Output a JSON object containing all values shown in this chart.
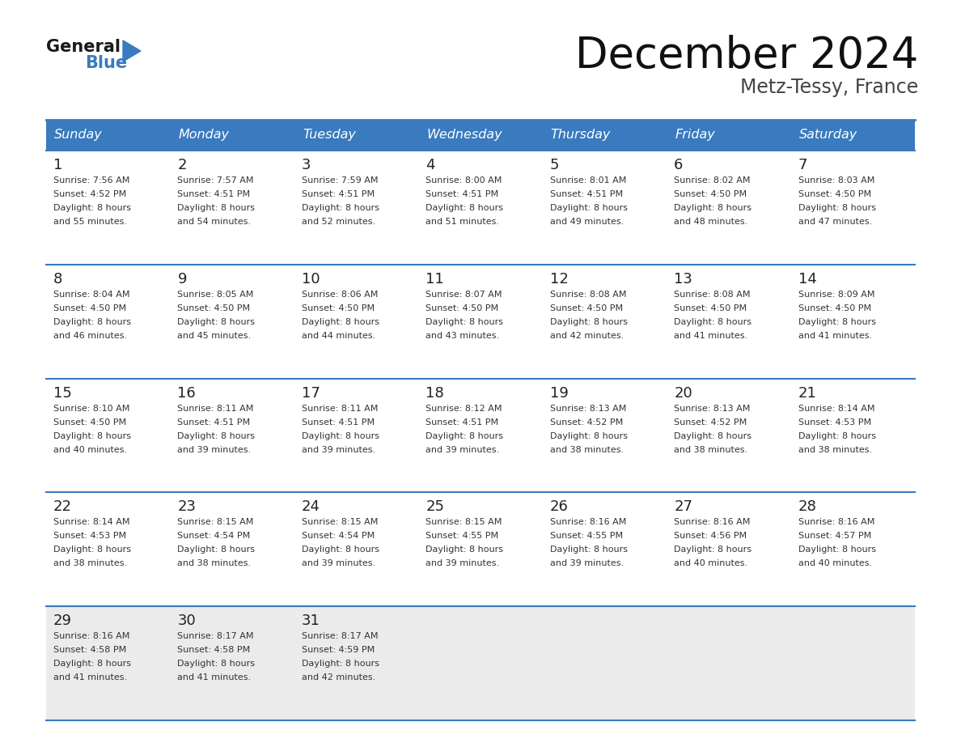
{
  "title": "December 2024",
  "subtitle": "Metz-Tessy, France",
  "header_bg_color": "#3a7abf",
  "header_text_color": "#ffffff",
  "row_bg_colors": [
    "#ffffff",
    "#ffffff",
    "#ffffff",
    "#ffffff",
    "#ebebeb"
  ],
  "cell_text_color": "#333333",
  "day_number_color": "#222222",
  "border_color": "#3a7abf",
  "separator_color": "#3a7abf",
  "days_of_week": [
    "Sunday",
    "Monday",
    "Tuesday",
    "Wednesday",
    "Thursday",
    "Friday",
    "Saturday"
  ],
  "weeks": [
    [
      {
        "day": 1,
        "sunrise": "7:56 AM",
        "sunset": "4:52 PM",
        "daylight": "8 hours and 55 minutes"
      },
      {
        "day": 2,
        "sunrise": "7:57 AM",
        "sunset": "4:51 PM",
        "daylight": "8 hours and 54 minutes"
      },
      {
        "day": 3,
        "sunrise": "7:59 AM",
        "sunset": "4:51 PM",
        "daylight": "8 hours and 52 minutes"
      },
      {
        "day": 4,
        "sunrise": "8:00 AM",
        "sunset": "4:51 PM",
        "daylight": "8 hours and 51 minutes"
      },
      {
        "day": 5,
        "sunrise": "8:01 AM",
        "sunset": "4:51 PM",
        "daylight": "8 hours and 49 minutes"
      },
      {
        "day": 6,
        "sunrise": "8:02 AM",
        "sunset": "4:50 PM",
        "daylight": "8 hours and 48 minutes"
      },
      {
        "day": 7,
        "sunrise": "8:03 AM",
        "sunset": "4:50 PM",
        "daylight": "8 hours and 47 minutes"
      }
    ],
    [
      {
        "day": 8,
        "sunrise": "8:04 AM",
        "sunset": "4:50 PM",
        "daylight": "8 hours and 46 minutes"
      },
      {
        "day": 9,
        "sunrise": "8:05 AM",
        "sunset": "4:50 PM",
        "daylight": "8 hours and 45 minutes"
      },
      {
        "day": 10,
        "sunrise": "8:06 AM",
        "sunset": "4:50 PM",
        "daylight": "8 hours and 44 minutes"
      },
      {
        "day": 11,
        "sunrise": "8:07 AM",
        "sunset": "4:50 PM",
        "daylight": "8 hours and 43 minutes"
      },
      {
        "day": 12,
        "sunrise": "8:08 AM",
        "sunset": "4:50 PM",
        "daylight": "8 hours and 42 minutes"
      },
      {
        "day": 13,
        "sunrise": "8:08 AM",
        "sunset": "4:50 PM",
        "daylight": "8 hours and 41 minutes"
      },
      {
        "day": 14,
        "sunrise": "8:09 AM",
        "sunset": "4:50 PM",
        "daylight": "8 hours and 41 minutes"
      }
    ],
    [
      {
        "day": 15,
        "sunrise": "8:10 AM",
        "sunset": "4:50 PM",
        "daylight": "8 hours and 40 minutes"
      },
      {
        "day": 16,
        "sunrise": "8:11 AM",
        "sunset": "4:51 PM",
        "daylight": "8 hours and 39 minutes"
      },
      {
        "day": 17,
        "sunrise": "8:11 AM",
        "sunset": "4:51 PM",
        "daylight": "8 hours and 39 minutes"
      },
      {
        "day": 18,
        "sunrise": "8:12 AM",
        "sunset": "4:51 PM",
        "daylight": "8 hours and 39 minutes"
      },
      {
        "day": 19,
        "sunrise": "8:13 AM",
        "sunset": "4:52 PM",
        "daylight": "8 hours and 38 minutes"
      },
      {
        "day": 20,
        "sunrise": "8:13 AM",
        "sunset": "4:52 PM",
        "daylight": "8 hours and 38 minutes"
      },
      {
        "day": 21,
        "sunrise": "8:14 AM",
        "sunset": "4:53 PM",
        "daylight": "8 hours and 38 minutes"
      }
    ],
    [
      {
        "day": 22,
        "sunrise": "8:14 AM",
        "sunset": "4:53 PM",
        "daylight": "8 hours and 38 minutes"
      },
      {
        "day": 23,
        "sunrise": "8:15 AM",
        "sunset": "4:54 PM",
        "daylight": "8 hours and 38 minutes"
      },
      {
        "day": 24,
        "sunrise": "8:15 AM",
        "sunset": "4:54 PM",
        "daylight": "8 hours and 39 minutes"
      },
      {
        "day": 25,
        "sunrise": "8:15 AM",
        "sunset": "4:55 PM",
        "daylight": "8 hours and 39 minutes"
      },
      {
        "day": 26,
        "sunrise": "8:16 AM",
        "sunset": "4:55 PM",
        "daylight": "8 hours and 39 minutes"
      },
      {
        "day": 27,
        "sunrise": "8:16 AM",
        "sunset": "4:56 PM",
        "daylight": "8 hours and 40 minutes"
      },
      {
        "day": 28,
        "sunrise": "8:16 AM",
        "sunset": "4:57 PM",
        "daylight": "8 hours and 40 minutes"
      }
    ],
    [
      {
        "day": 29,
        "sunrise": "8:16 AM",
        "sunset": "4:58 PM",
        "daylight": "8 hours and 41 minutes"
      },
      {
        "day": 30,
        "sunrise": "8:17 AM",
        "sunset": "4:58 PM",
        "daylight": "8 hours and 41 minutes"
      },
      {
        "day": 31,
        "sunrise": "8:17 AM",
        "sunset": "4:59 PM",
        "daylight": "8 hours and 42 minutes"
      },
      null,
      null,
      null,
      null
    ]
  ]
}
